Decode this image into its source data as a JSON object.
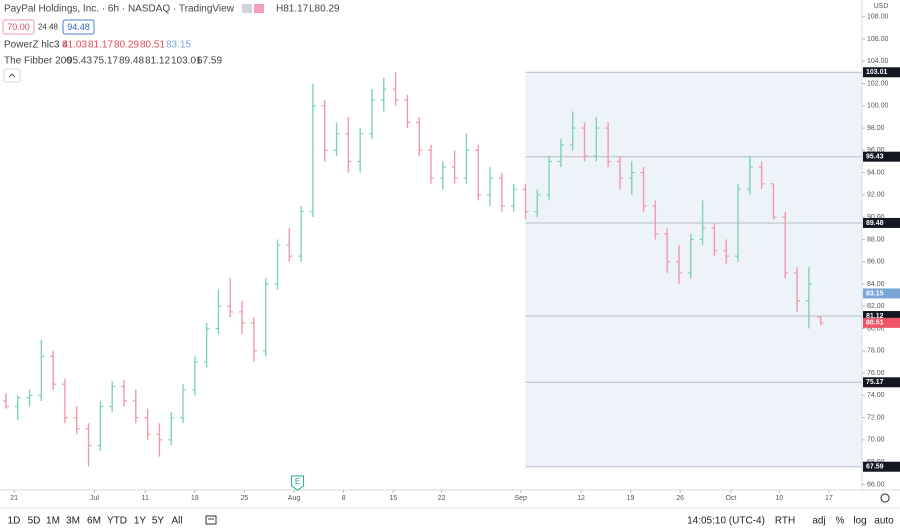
{
  "header": {
    "title": "PayPal Holdings, Inc. · 6h · NASDAQ · TradingView",
    "high_text": "H81.17",
    "low_text": "L80.29",
    "bid": "70.00",
    "spread": "24.48",
    "ask": "94.48",
    "currency": "USD"
  },
  "toolbar": {
    "ranges": [
      "1D",
      "5D",
      "1M",
      "3M",
      "6M",
      "YTD",
      "1Y",
      "5Y",
      "All"
    ],
    "clock": "14:05:10 (UTC-4)",
    "options": [
      "RTH",
      "adj",
      "%",
      "log",
      "auto"
    ]
  },
  "chart_data": {
    "type": "ohlc",
    "up_color": "#7fd4b2",
    "down_color": "#f19aa8",
    "open": [
      73.5,
      73.0,
      73.8,
      74.0,
      77.5,
      75.0,
      72.0,
      71.0,
      69.5,
      73.0,
      74.8,
      73.5,
      72.0,
      70.5,
      70.0,
      72.0,
      74.5,
      77.0,
      80.0,
      82.0,
      81.5,
      80.5,
      78.0,
      84.0,
      87.5,
      86.5,
      90.5,
      100.0,
      96.0,
      97.5,
      95.0,
      97.5,
      100.5,
      101.5,
      100.5,
      98.5,
      96.0,
      93.5,
      94.5,
      93.5,
      96.0,
      92.0,
      93.5,
      91.0,
      92.5,
      90.5,
      92.0,
      95.0,
      96.5,
      98.0,
      95.5,
      98.0,
      95.0,
      93.5,
      94.0,
      91.0,
      88.5,
      86.0,
      85.0,
      88.0,
      89.0,
      87.0,
      86.5,
      92.5,
      94.5,
      93.0,
      90.0,
      85.0,
      82.5,
      81.03
    ],
    "high": [
      74.2,
      74.0,
      74.5,
      79.0,
      78.0,
      75.5,
      73.0,
      71.5,
      73.5,
      75.3,
      75.4,
      74.5,
      72.8,
      71.5,
      72.5,
      75.0,
      77.5,
      80.5,
      83.5,
      84.5,
      82.5,
      81.0,
      84.5,
      88.0,
      89.0,
      91.0,
      102.0,
      100.5,
      98.5,
      99.0,
      98.0,
      101.5,
      102.5,
      103.0,
      101.0,
      99.0,
      96.5,
      95.0,
      96.0,
      97.5,
      96.5,
      94.5,
      94.0,
      93.0,
      93.0,
      92.5,
      95.5,
      97.0,
      99.5,
      98.5,
      99.0,
      98.5,
      95.5,
      95.0,
      94.5,
      91.5,
      89.0,
      87.5,
      88.5,
      91.5,
      89.5,
      88.0,
      93.0,
      95.5,
      95.0,
      93.0,
      90.5,
      85.5,
      85.5,
      81.17
    ],
    "low": [
      72.8,
      71.8,
      73.0,
      73.5,
      74.5,
      71.5,
      70.5,
      67.6,
      69.0,
      72.5,
      73.0,
      71.5,
      70.0,
      68.5,
      69.5,
      71.5,
      74.0,
      76.5,
      79.5,
      81.0,
      79.5,
      77.0,
      77.5,
      83.5,
      86.0,
      86.0,
      90.0,
      95.0,
      95.5,
      94.0,
      94.0,
      97.0,
      99.5,
      100.0,
      98.0,
      95.5,
      93.0,
      92.5,
      93.0,
      93.0,
      91.5,
      91.0,
      90.5,
      90.5,
      89.8,
      90.0,
      91.5,
      94.5,
      96.0,
      95.0,
      95.0,
      94.5,
      92.5,
      92.0,
      90.5,
      88.0,
      85.0,
      84.0,
      84.5,
      87.5,
      86.5,
      85.8,
      86.0,
      92.0,
      92.5,
      89.8,
      84.5,
      81.5,
      80.0,
      80.29
    ],
    "close": [
      73.0,
      73.8,
      74.0,
      77.5,
      75.0,
      72.0,
      71.0,
      69.5,
      73.0,
      74.8,
      73.5,
      72.0,
      70.5,
      70.0,
      72.0,
      74.5,
      77.0,
      80.0,
      82.0,
      81.5,
      80.5,
      78.0,
      84.0,
      87.5,
      86.5,
      90.5,
      100.0,
      96.0,
      97.5,
      95.0,
      97.5,
      100.5,
      101.5,
      100.5,
      98.5,
      96.0,
      93.5,
      94.5,
      93.5,
      96.0,
      92.0,
      93.5,
      91.0,
      92.5,
      90.5,
      92.0,
      95.0,
      96.5,
      98.0,
      95.5,
      98.0,
      95.0,
      93.5,
      94.0,
      91.0,
      88.5,
      86.0,
      85.0,
      88.0,
      89.0,
      87.0,
      86.5,
      92.5,
      94.5,
      93.0,
      90.0,
      85.0,
      82.5,
      84.0,
      80.51
    ],
    "indicator_1": {
      "name": "PowerZ hlc3 4",
      "value": 83.15,
      "color": "#7aa6d6"
    },
    "indicator_2": {
      "name": "The Fibber 200",
      "levels": [
        95.43,
        75.17,
        89.48,
        81.12,
        103.01,
        67.59
      ],
      "color": "#b8bec8",
      "band_color": "#eef3fa"
    },
    "xlim": [
      -0.5,
      72.5
    ],
    "ylim": [
      65.5,
      109.5
    ],
    "xticks": [
      {
        "value": 0.7,
        "label": "21"
      },
      {
        "value": 7.5,
        "label": "Jul"
      },
      {
        "value": 11.8,
        "label": "11"
      },
      {
        "value": 16,
        "label": "18"
      },
      {
        "value": 20.2,
        "label": "25"
      },
      {
        "value": 24.4,
        "label": "Aug"
      },
      {
        "value": 28.6,
        "label": "8"
      },
      {
        "value": 32.8,
        "label": "15"
      },
      {
        "value": 36.9,
        "label": "22"
      },
      {
        "value": 43.6,
        "label": "Sep"
      },
      {
        "value": 48.7,
        "label": "12"
      },
      {
        "value": 52.9,
        "label": "19"
      },
      {
        "value": 57.1,
        "label": "26"
      },
      {
        "value": 61.4,
        "label": "Oct"
      },
      {
        "value": 65.5,
        "label": "10"
      },
      {
        "value": 69.7,
        "label": "17"
      }
    ],
    "yticks": [
      {
        "value": 66,
        "label": "66.00"
      },
      {
        "value": 68,
        "label": "68.00"
      },
      {
        "value": 70,
        "label": "70.00"
      },
      {
        "value": 72,
        "label": "72.00"
      },
      {
        "value": 74,
        "label": "74.00"
      },
      {
        "value": 76,
        "label": "76.00"
      },
      {
        "value": 78,
        "label": "78.00"
      },
      {
        "value": 80,
        "label": "80.00"
      },
      {
        "value": 82,
        "label": "82.00"
      },
      {
        "value": 84,
        "label": "84.00"
      },
      {
        "value": 86,
        "label": "86.00"
      },
      {
        "value": 88,
        "label": "88.00"
      },
      {
        "value": 90,
        "label": "90.00"
      },
      {
        "value": 92,
        "label": "92.00"
      },
      {
        "value": 94,
        "label": "94.00"
      },
      {
        "value": 96,
        "label": "96.00"
      },
      {
        "value": 98,
        "label": "98.00"
      },
      {
        "value": 100,
        "label": "100.00"
      },
      {
        "value": 102,
        "label": "102.00"
      },
      {
        "value": 104,
        "label": "104.00"
      },
      {
        "value": 106,
        "label": "106.00"
      },
      {
        "value": 108,
        "label": "108.00"
      }
    ],
    "earnings_marker": {
      "label": "E",
      "x": 24.7
    }
  }
}
